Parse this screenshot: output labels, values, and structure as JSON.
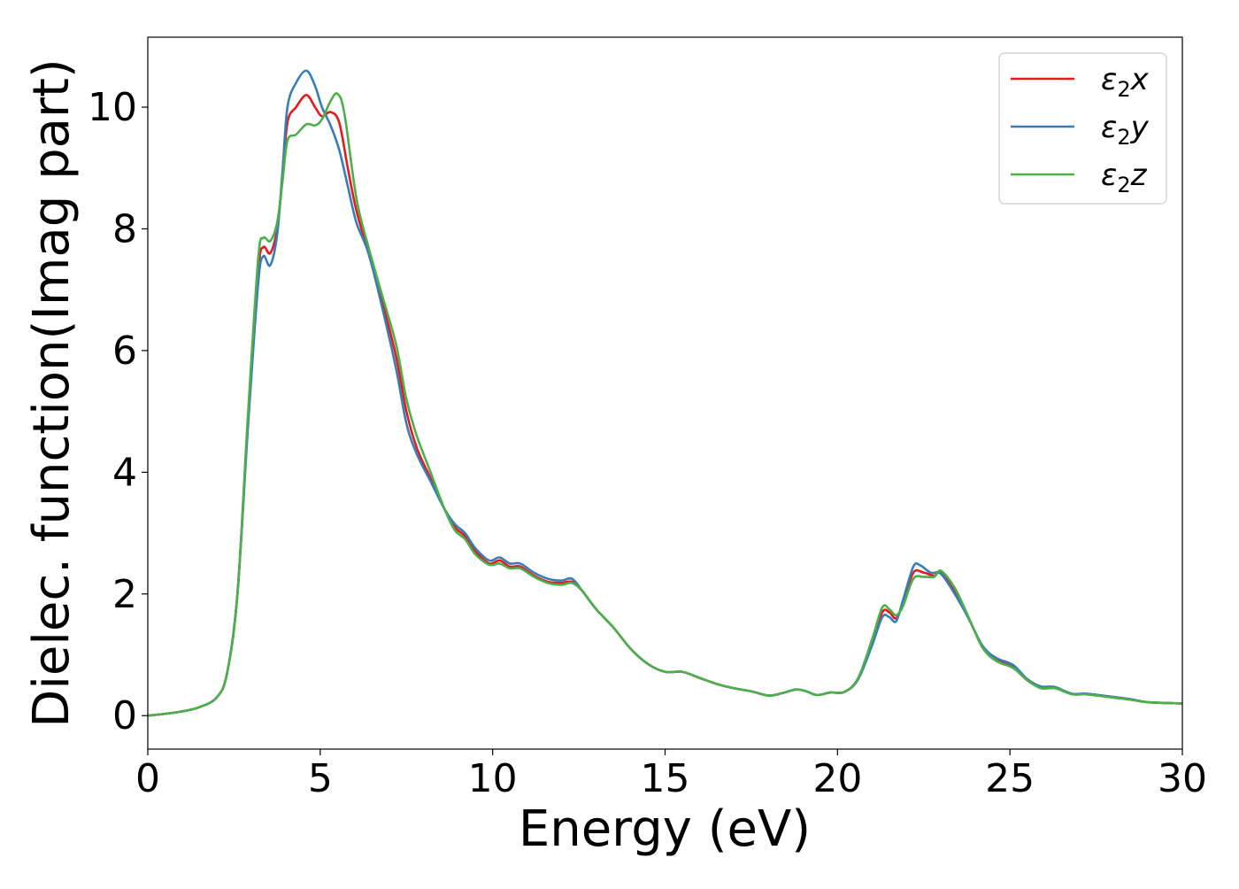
{
  "chart_data": {
    "type": "line",
    "title": "",
    "xlabel": "Energy (eV)",
    "ylabel": "Dielec. function(Imag part)",
    "xlim": [
      0,
      30
    ],
    "ylim": [
      -0.55,
      11.15
    ],
    "x_ticks": [
      0,
      5,
      10,
      15,
      20,
      25,
      30
    ],
    "y_ticks": [
      0,
      2,
      4,
      6,
      8,
      10
    ],
    "x_tick_labels": [
      "0",
      "5",
      "10",
      "15",
      "20",
      "25",
      "30"
    ],
    "y_tick_labels": [
      "0",
      "2",
      "4",
      "6",
      "8",
      "10"
    ],
    "grid": false,
    "legend_position": "top-right",
    "legend": {
      "prefix": "ε",
      "subscript": "2"
    },
    "series": [
      {
        "name": "ε2x",
        "legend_suffix": "x",
        "color": "#e41a1c",
        "points": [
          [
            0,
            0
          ],
          [
            0.5,
            0.03
          ],
          [
            1.0,
            0.07
          ],
          [
            1.5,
            0.14
          ],
          [
            2.0,
            0.3
          ],
          [
            2.3,
            0.7
          ],
          [
            2.6,
            2.0
          ],
          [
            2.9,
            4.8
          ],
          [
            3.2,
            7.3
          ],
          [
            3.35,
            7.7
          ],
          [
            3.55,
            7.6
          ],
          [
            3.75,
            8.0
          ],
          [
            3.9,
            8.8
          ],
          [
            4.05,
            9.75
          ],
          [
            4.3,
            10.0
          ],
          [
            4.6,
            10.2
          ],
          [
            4.85,
            10.0
          ],
          [
            5.05,
            9.85
          ],
          [
            5.3,
            9.92
          ],
          [
            5.55,
            9.75
          ],
          [
            5.8,
            9.0
          ],
          [
            6.05,
            8.3
          ],
          [
            6.4,
            7.6
          ],
          [
            6.8,
            6.8
          ],
          [
            7.2,
            5.9
          ],
          [
            7.5,
            5.0
          ],
          [
            7.8,
            4.4
          ],
          [
            8.2,
            3.9
          ],
          [
            8.6,
            3.4
          ],
          [
            8.9,
            3.1
          ],
          [
            9.2,
            2.95
          ],
          [
            9.5,
            2.7
          ],
          [
            9.9,
            2.5
          ],
          [
            10.2,
            2.55
          ],
          [
            10.5,
            2.45
          ],
          [
            10.8,
            2.45
          ],
          [
            11.2,
            2.3
          ],
          [
            11.6,
            2.2
          ],
          [
            12.0,
            2.18
          ],
          [
            12.3,
            2.2
          ],
          [
            12.6,
            2.05
          ],
          [
            13.0,
            1.75
          ],
          [
            13.5,
            1.45
          ],
          [
            14.0,
            1.1
          ],
          [
            14.5,
            0.85
          ],
          [
            15.0,
            0.72
          ],
          [
            15.5,
            0.72
          ],
          [
            16.0,
            0.62
          ],
          [
            16.5,
            0.52
          ],
          [
            17.0,
            0.45
          ],
          [
            17.5,
            0.4
          ],
          [
            18.0,
            0.33
          ],
          [
            18.4,
            0.37
          ],
          [
            18.8,
            0.43
          ],
          [
            19.1,
            0.4
          ],
          [
            19.4,
            0.34
          ],
          [
            19.8,
            0.38
          ],
          [
            20.2,
            0.39
          ],
          [
            20.6,
            0.6
          ],
          [
            21.0,
            1.2
          ],
          [
            21.3,
            1.7
          ],
          [
            21.5,
            1.7
          ],
          [
            21.7,
            1.6
          ],
          [
            21.9,
            1.85
          ],
          [
            22.2,
            2.35
          ],
          [
            22.5,
            2.35
          ],
          [
            22.8,
            2.3
          ],
          [
            23.0,
            2.35
          ],
          [
            23.4,
            2.05
          ],
          [
            23.8,
            1.6
          ],
          [
            24.2,
            1.15
          ],
          [
            24.6,
            0.92
          ],
          [
            25.1,
            0.8
          ],
          [
            25.5,
            0.6
          ],
          [
            25.9,
            0.47
          ],
          [
            26.3,
            0.46
          ],
          [
            26.8,
            0.36
          ],
          [
            27.2,
            0.36
          ],
          [
            27.8,
            0.32
          ],
          [
            28.5,
            0.27
          ],
          [
            29.0,
            0.22
          ],
          [
            30.0,
            0.2
          ]
        ]
      },
      {
        "name": "ε2y",
        "legend_suffix": "y",
        "color": "#377eb8",
        "points": [
          [
            0,
            0
          ],
          [
            0.5,
            0.03
          ],
          [
            1.0,
            0.07
          ],
          [
            1.5,
            0.14
          ],
          [
            2.0,
            0.3
          ],
          [
            2.3,
            0.7
          ],
          [
            2.6,
            2.0
          ],
          [
            2.9,
            4.7
          ],
          [
            3.2,
            7.1
          ],
          [
            3.35,
            7.55
          ],
          [
            3.55,
            7.4
          ],
          [
            3.75,
            7.9
          ],
          [
            3.9,
            8.9
          ],
          [
            4.05,
            10.0
          ],
          [
            4.3,
            10.4
          ],
          [
            4.6,
            10.6
          ],
          [
            4.85,
            10.35
          ],
          [
            5.05,
            10.0
          ],
          [
            5.3,
            9.7
          ],
          [
            5.55,
            9.3
          ],
          [
            5.8,
            8.7
          ],
          [
            6.05,
            8.1
          ],
          [
            6.4,
            7.6
          ],
          [
            6.8,
            6.7
          ],
          [
            7.2,
            5.7
          ],
          [
            7.5,
            4.8
          ],
          [
            7.8,
            4.3
          ],
          [
            8.2,
            3.85
          ],
          [
            8.6,
            3.4
          ],
          [
            8.9,
            3.15
          ],
          [
            9.2,
            3.0
          ],
          [
            9.5,
            2.75
          ],
          [
            9.9,
            2.55
          ],
          [
            10.2,
            2.6
          ],
          [
            10.5,
            2.5
          ],
          [
            10.8,
            2.5
          ],
          [
            11.2,
            2.35
          ],
          [
            11.6,
            2.25
          ],
          [
            12.0,
            2.22
          ],
          [
            12.3,
            2.25
          ],
          [
            12.6,
            2.05
          ],
          [
            13.0,
            1.75
          ],
          [
            13.5,
            1.45
          ],
          [
            14.0,
            1.1
          ],
          [
            14.5,
            0.85
          ],
          [
            15.0,
            0.72
          ],
          [
            15.5,
            0.72
          ],
          [
            16.0,
            0.62
          ],
          [
            16.5,
            0.52
          ],
          [
            17.0,
            0.45
          ],
          [
            17.5,
            0.4
          ],
          [
            18.0,
            0.33
          ],
          [
            18.4,
            0.37
          ],
          [
            18.8,
            0.43
          ],
          [
            19.1,
            0.4
          ],
          [
            19.4,
            0.34
          ],
          [
            19.8,
            0.38
          ],
          [
            20.2,
            0.39
          ],
          [
            20.6,
            0.6
          ],
          [
            21.0,
            1.15
          ],
          [
            21.3,
            1.62
          ],
          [
            21.5,
            1.62
          ],
          [
            21.7,
            1.55
          ],
          [
            21.9,
            1.9
          ],
          [
            22.2,
            2.45
          ],
          [
            22.4,
            2.47
          ],
          [
            22.7,
            2.35
          ],
          [
            23.0,
            2.33
          ],
          [
            23.4,
            2.0
          ],
          [
            23.8,
            1.6
          ],
          [
            24.2,
            1.15
          ],
          [
            24.6,
            0.95
          ],
          [
            25.1,
            0.83
          ],
          [
            25.5,
            0.6
          ],
          [
            25.9,
            0.48
          ],
          [
            26.3,
            0.47
          ],
          [
            26.8,
            0.36
          ],
          [
            27.2,
            0.36
          ],
          [
            27.8,
            0.32
          ],
          [
            28.5,
            0.27
          ],
          [
            29.0,
            0.22
          ],
          [
            30.0,
            0.2
          ]
        ]
      },
      {
        "name": "ε2z",
        "legend_suffix": "z",
        "color": "#4daf4a",
        "points": [
          [
            0,
            0
          ],
          [
            0.5,
            0.03
          ],
          [
            1.0,
            0.07
          ],
          [
            1.5,
            0.14
          ],
          [
            2.0,
            0.3
          ],
          [
            2.3,
            0.7
          ],
          [
            2.6,
            2.0
          ],
          [
            2.9,
            4.9
          ],
          [
            3.2,
            7.5
          ],
          [
            3.35,
            7.85
          ],
          [
            3.55,
            7.8
          ],
          [
            3.75,
            8.1
          ],
          [
            3.9,
            8.75
          ],
          [
            4.05,
            9.45
          ],
          [
            4.3,
            9.55
          ],
          [
            4.6,
            9.72
          ],
          [
            4.85,
            9.7
          ],
          [
            5.05,
            9.8
          ],
          [
            5.3,
            10.1
          ],
          [
            5.5,
            10.22
          ],
          [
            5.7,
            9.9
          ],
          [
            6.05,
            8.5
          ],
          [
            6.4,
            7.7
          ],
          [
            6.8,
            6.9
          ],
          [
            7.2,
            6.1
          ],
          [
            7.5,
            5.2
          ],
          [
            7.8,
            4.6
          ],
          [
            8.2,
            4.0
          ],
          [
            8.6,
            3.4
          ],
          [
            8.9,
            3.05
          ],
          [
            9.2,
            2.9
          ],
          [
            9.5,
            2.65
          ],
          [
            9.9,
            2.48
          ],
          [
            10.2,
            2.5
          ],
          [
            10.5,
            2.42
          ],
          [
            10.8,
            2.42
          ],
          [
            11.2,
            2.28
          ],
          [
            11.6,
            2.18
          ],
          [
            12.0,
            2.15
          ],
          [
            12.3,
            2.18
          ],
          [
            12.6,
            2.05
          ],
          [
            13.0,
            1.75
          ],
          [
            13.5,
            1.45
          ],
          [
            14.0,
            1.1
          ],
          [
            14.5,
            0.85
          ],
          [
            15.0,
            0.72
          ],
          [
            15.5,
            0.72
          ],
          [
            16.0,
            0.62
          ],
          [
            16.5,
            0.52
          ],
          [
            17.0,
            0.45
          ],
          [
            17.5,
            0.4
          ],
          [
            18.0,
            0.33
          ],
          [
            18.4,
            0.37
          ],
          [
            18.8,
            0.43
          ],
          [
            19.1,
            0.4
          ],
          [
            19.4,
            0.34
          ],
          [
            19.8,
            0.38
          ],
          [
            20.2,
            0.39
          ],
          [
            20.6,
            0.62
          ],
          [
            21.0,
            1.25
          ],
          [
            21.3,
            1.78
          ],
          [
            21.5,
            1.75
          ],
          [
            21.7,
            1.65
          ],
          [
            21.9,
            1.8
          ],
          [
            22.2,
            2.25
          ],
          [
            22.5,
            2.28
          ],
          [
            22.8,
            2.28
          ],
          [
            23.0,
            2.38
          ],
          [
            23.4,
            2.1
          ],
          [
            23.8,
            1.62
          ],
          [
            24.2,
            1.12
          ],
          [
            24.6,
            0.9
          ],
          [
            25.1,
            0.78
          ],
          [
            25.5,
            0.58
          ],
          [
            25.9,
            0.45
          ],
          [
            26.3,
            0.45
          ],
          [
            26.8,
            0.35
          ],
          [
            27.2,
            0.35
          ],
          [
            27.8,
            0.31
          ],
          [
            28.5,
            0.26
          ],
          [
            29.0,
            0.22
          ],
          [
            30.0,
            0.2
          ]
        ]
      }
    ]
  }
}
